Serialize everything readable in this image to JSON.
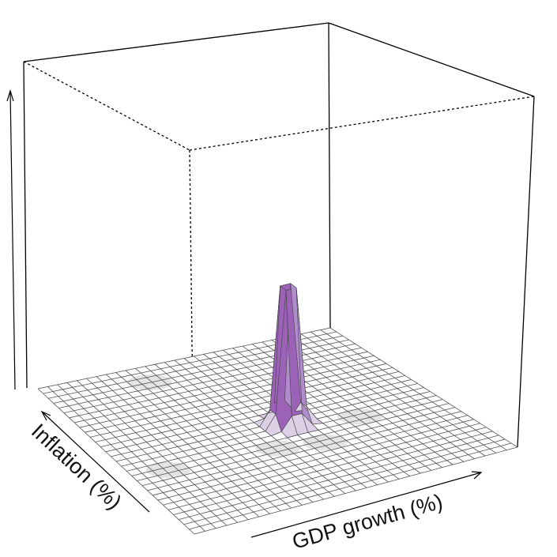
{
  "chart_data": {
    "type": "surface",
    "xlabel": "GDP growth (%)",
    "ylabel": "Inflation (%)",
    "zlabel": "",
    "grid_size": [
      30,
      30
    ],
    "colors": {
      "peak_dark": "#9b62b8",
      "peak_mid": "#b08ccc",
      "peak_light": "#dcd0e6",
      "mesh": "#555555",
      "bump": "#d8d8d8"
    },
    "surface_features": [
      {
        "kind": "peak",
        "x_cell": 16.5,
        "y_cell": 14.5,
        "height": 1.0
      },
      {
        "kind": "bump",
        "x_cell": 9.5,
        "y_cell": 26.5,
        "height": 0.03
      },
      {
        "kind": "bump",
        "x_cell": 3,
        "y_cell": 11,
        "height": 0.03
      },
      {
        "kind": "bump",
        "x_cell": 13,
        "y_cell": 10,
        "height": 0.03
      },
      {
        "kind": "bump",
        "x_cell": 17,
        "y_cell": 9,
        "height": 0.03
      },
      {
        "kind": "bump",
        "x_cell": 22,
        "y_cell": 12,
        "height": 0.03
      }
    ]
  }
}
